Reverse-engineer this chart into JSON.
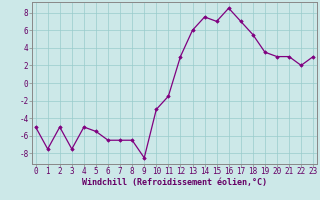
{
  "x": [
    0,
    1,
    2,
    3,
    4,
    5,
    6,
    7,
    8,
    9,
    10,
    11,
    12,
    13,
    14,
    15,
    16,
    17,
    18,
    19,
    20,
    21,
    22,
    23
  ],
  "y": [
    -5.0,
    -7.5,
    -5.0,
    -7.5,
    -5.0,
    -5.5,
    -6.5,
    -6.5,
    -6.5,
    -8.5,
    -3.0,
    -1.5,
    3.0,
    6.0,
    7.5,
    7.0,
    8.5,
    7.0,
    5.5,
    3.5,
    3.0,
    3.0,
    2.0,
    3.0
  ],
  "line_color": "#800080",
  "marker": "D",
  "marker_size": 1.8,
  "line_width": 0.9,
  "bg_color": "#cce8e8",
  "grid_color": "#99cccc",
  "xlabel": "Windchill (Refroidissement éolien,°C)",
  "xlabel_fontsize": 6.0,
  "ytick_labels": [
    "8",
    "6",
    "4",
    "2",
    "0",
    "-2",
    "-4",
    "-6",
    "-8"
  ],
  "yticks": [
    8,
    6,
    4,
    2,
    0,
    -2,
    -4,
    -6,
    -8
  ],
  "xticks": [
    0,
    1,
    2,
    3,
    4,
    5,
    6,
    7,
    8,
    9,
    10,
    11,
    12,
    13,
    14,
    15,
    16,
    17,
    18,
    19,
    20,
    21,
    22,
    23
  ],
  "ylim": [
    -9.2,
    9.2
  ],
  "xlim": [
    -0.3,
    23.3
  ],
  "tick_fontsize": 5.5,
  "tick_color": "#660066",
  "spine_color": "#888888",
  "xlabel_color": "#660066"
}
